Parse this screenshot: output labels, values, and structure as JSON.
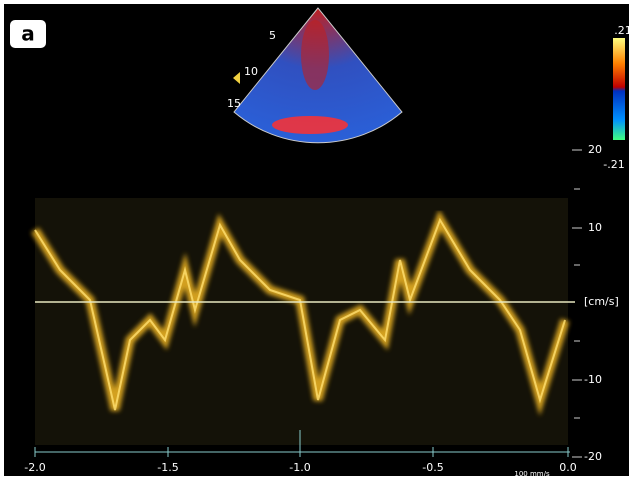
{
  "panel_label": "a",
  "sector": {
    "depth_labels": [
      "5",
      "10",
      "15"
    ]
  },
  "color_bar": {
    "top_label": ".21",
    "bottom_label": "-.21"
  },
  "velocity_axis": {
    "labels": [
      "20",
      "10",
      "-10",
      "-20"
    ],
    "unit": "[cm/s]"
  },
  "time_axis": {
    "labels": [
      "-2.0",
      "-1.5",
      "-1.0",
      "-0.5",
      "0.0"
    ],
    "speed": "100 mm/s"
  }
}
